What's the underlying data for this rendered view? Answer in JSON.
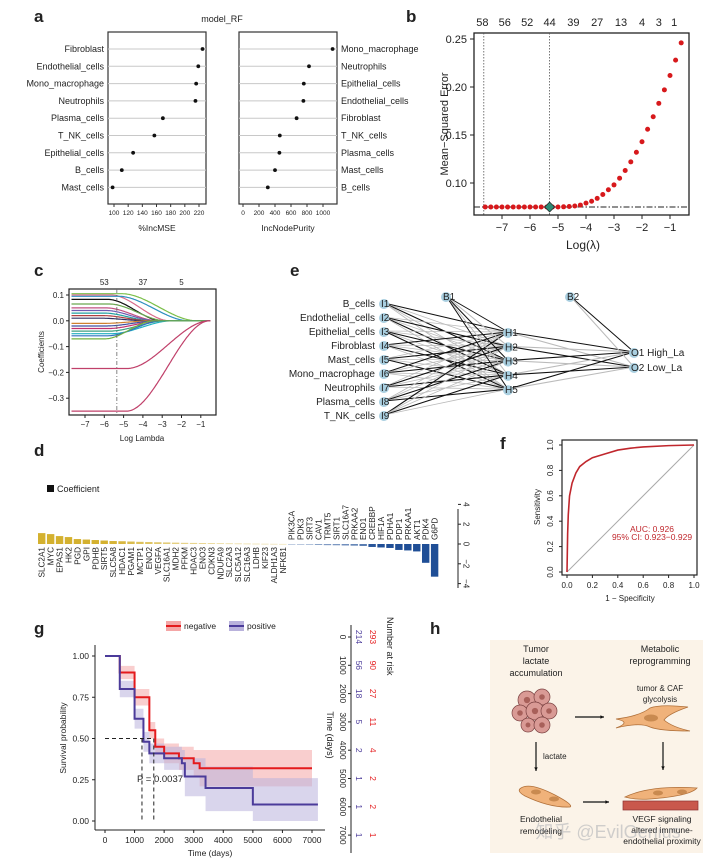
{
  "panel_labels": [
    "a",
    "b",
    "c",
    "d",
    "e",
    "f",
    "g",
    "h"
  ],
  "chart_data": [
    {
      "panel": "a",
      "type": "dot",
      "title": "model_RF",
      "subplots": [
        {
          "xlabel": "%IncMSE",
          "xticks": [
            100,
            120,
            140,
            160,
            180,
            200,
            220
          ],
          "xlim": [
            92,
            230
          ],
          "categories": [
            "Fibroblast",
            "Endothelial_cells",
            "Mono_macrophage",
            "Neutrophils",
            "Plasma_cells",
            "T_NK_cells",
            "Epithelial_cells",
            "B_cells",
            "Mast_cells"
          ],
          "values": [
            225,
            219,
            216,
            215,
            169,
            157,
            127,
            111,
            98
          ]
        },
        {
          "xlabel": "IncNodePurity",
          "xticks": [
            0,
            200,
            400,
            600,
            800,
            1000
          ],
          "xlim": [
            -50,
            1170
          ],
          "categories": [
            "Mono_macrophage",
            "Neutrophils",
            "Epithelial_cells",
            "Endothelial_cells",
            "Fibroblast",
            "T_NK_cells",
            "Plasma_cells",
            "Mast_cells",
            "B_cells"
          ],
          "values": [
            1120,
            825,
            760,
            755,
            670,
            460,
            455,
            400,
            310
          ]
        }
      ]
    },
    {
      "panel": "b",
      "type": "scatter",
      "xlabel": "Log(λ)",
      "ylabel": "Mean−Squared Error",
      "xticks": [
        -7,
        -6,
        -5,
        -4,
        -3,
        -2,
        -1
      ],
      "yticks": [
        0.1,
        0.15,
        0.2,
        0.25
      ],
      "ytick_labels": [
        "0.10",
        "0.15",
        "0.20",
        "0.25"
      ],
      "top_axis": {
        "labels": [
          "58",
          "56",
          "52",
          "44",
          "39",
          "27",
          "13",
          "4",
          "3",
          "1"
        ],
        "at": [
          -7.7,
          -6.9,
          -6.1,
          -5.3,
          -4.45,
          -3.6,
          -2.75,
          -2.0,
          -1.4,
          -0.85
        ]
      },
      "vlines": [
        -7.65,
        -5.3
      ],
      "hline": 0.075,
      "min_point": {
        "x": -5.3,
        "y": 0.075
      },
      "x": [
        -7.6,
        -7.4,
        -7.2,
        -7.0,
        -6.8,
        -6.6,
        -6.4,
        -6.2,
        -6.0,
        -5.8,
        -5.6,
        -5.4,
        -5.2,
        -5.0,
        -4.8,
        -4.6,
        -4.4,
        -4.2,
        -4.0,
        -3.8,
        -3.6,
        -3.4,
        -3.2,
        -3.0,
        -2.8,
        -2.6,
        -2.4,
        -2.2,
        -2.0,
        -1.8,
        -1.6,
        -1.4,
        -1.2,
        -1.0,
        -0.8,
        -0.6
      ],
      "y": [
        0.075,
        0.075,
        0.075,
        0.075,
        0.075,
        0.075,
        0.075,
        0.075,
        0.075,
        0.075,
        0.075,
        0.075,
        0.075,
        0.075,
        0.0752,
        0.0755,
        0.076,
        0.077,
        0.079,
        0.081,
        0.084,
        0.088,
        0.093,
        0.098,
        0.105,
        0.113,
        0.122,
        0.132,
        0.143,
        0.156,
        0.169,
        0.183,
        0.197,
        0.212,
        0.228,
        0.246
      ],
      "colors": {
        "points": "#d7191c",
        "min": "#2e8b75"
      }
    },
    {
      "panel": "c",
      "type": "line",
      "xlabel": "Log Lambda",
      "ylabel": "Coefficients",
      "xticks": [
        -7,
        -6,
        -5,
        -4,
        -3,
        -2,
        -1
      ],
      "yticks": [
        0.1,
        0.0,
        -0.1,
        -0.2,
        -0.3
      ],
      "ytick_labels": [
        "0.1",
        "0.0",
        "−0.1",
        "−0.2",
        "−0.3"
      ],
      "top_axis": {
        "labels": [
          "53",
          "37",
          "5"
        ],
        "at": [
          -6.0,
          -4.0,
          -2.0
        ]
      },
      "vline": -5.35,
      "series": [
        {
          "start": 0.1,
          "zero": -2.6,
          "color": "#d86a8a"
        },
        {
          "start": 0.105,
          "zero": -1.2,
          "color": "#7bbf4a"
        },
        {
          "start": 0.095,
          "zero": -1.6,
          "color": "#2e8fc0"
        },
        {
          "start": 0.083,
          "zero": -3.0,
          "color": "#111111"
        },
        {
          "start": 0.065,
          "zero": -2.8,
          "color": "#6aa84f"
        },
        {
          "start": 0.05,
          "zero": -3.2,
          "color": "#c05080"
        },
        {
          "start": 0.04,
          "zero": -3.3,
          "color": "#6f5bb0"
        },
        {
          "start": 0.03,
          "zero": -3.5,
          "color": "#20a0a0"
        },
        {
          "start": 0.02,
          "zero": -3.6,
          "color": "#b04040"
        },
        {
          "start": 0.01,
          "zero": -3.8,
          "color": "#303060"
        },
        {
          "start": -0.01,
          "zero": -3.5,
          "color": "#d08030"
        },
        {
          "start": -0.02,
          "zero": -3.2,
          "color": "#4050a0"
        },
        {
          "start": -0.03,
          "zero": -3.0,
          "color": "#c03070"
        },
        {
          "start": -0.04,
          "zero": -2.8,
          "color": "#40a080"
        },
        {
          "start": -0.05,
          "zero": -2.5,
          "color": "#20b0c0"
        },
        {
          "start": -0.058,
          "zero": -3.0,
          "color": "#3070c0"
        },
        {
          "start": -0.07,
          "zero": -3.4,
          "color": "#70b040"
        },
        {
          "start": -0.185,
          "zero": -0.55,
          "color": "#c0406a"
        },
        {
          "start": -0.35,
          "zero": -0.55,
          "color": "#c0406a"
        }
      ]
    },
    {
      "panel": "d",
      "type": "bar",
      "legend": "Coefficient",
      "yticks": [
        4,
        2,
        0,
        -2,
        -4
      ],
      "ytick_labels": [
        "4",
        "2",
        "0",
        "−2",
        "−4"
      ],
      "categories": [
        "SLC2A1",
        "MYC",
        "EPAS1",
        "HK2",
        "PGD",
        "GPI",
        "PDHB",
        "SIRT5",
        "SLC5A8",
        "HDAC1",
        "PGAM1",
        "MCTP1",
        "ENO2",
        "VEGFA",
        "SLC16A1",
        "MDH2",
        "PFKM",
        "HDAC3",
        "ENO3",
        "CDKN3",
        "NDUFA9",
        "SLC2A3",
        "SLC5A12",
        "SLC16A3",
        "LDHB",
        "KIF23",
        "ALDH1A3",
        "NFKB1",
        "PIK3CA",
        "PDK3",
        "SIRT3",
        "CAV1",
        "TRMT5",
        "SIRT1",
        "SLC16A7",
        "PRKAA2",
        "ENO1",
        "CREBBP",
        "HIF1A",
        "PDHA1",
        "PDP1",
        "PRKAA1",
        "AKT1",
        "PDK4",
        "G6PD"
      ],
      "values": [
        1.1,
        1.0,
        0.8,
        0.7,
        0.5,
        0.45,
        0.4,
        0.35,
        0.3,
        0.28,
        0.25,
        0.22,
        0.2,
        0.18,
        0.16,
        0.14,
        0.12,
        0.11,
        0.1,
        0.09,
        0.08,
        0.07,
        0.06,
        0.05,
        0.04,
        0.03,
        0.02,
        0.01,
        -0.02,
        -0.04,
        -0.06,
        -0.1,
        -0.12,
        -0.13,
        -0.15,
        -0.17,
        -0.2,
        -0.3,
        -0.35,
        -0.4,
        -0.6,
        -0.65,
        -0.75,
        -1.9,
        -3.3
      ],
      "colors": {
        "positive": "#d4b12f",
        "negative": "#1f4e96"
      }
    },
    {
      "panel": "e",
      "type": "network",
      "input_labels": [
        "B_cells",
        "Endothelial_cells",
        "Epithelial_cells",
        "Fibroblast",
        "Mast_cells",
        "Mono_macrophage",
        "Neutrophils",
        "Plasma_cells",
        "T_NK_cells"
      ],
      "input_nodes": [
        "I1",
        "I2",
        "I3",
        "I4",
        "I5",
        "I6",
        "I7",
        "I8",
        "I9"
      ],
      "hidden_nodes": [
        "H1",
        "H2",
        "H3",
        "H4",
        "H5"
      ],
      "bias_nodes": [
        "B1",
        "B2"
      ],
      "output_nodes": [
        "O1 High_La",
        "O2 Low_La"
      ],
      "colors": {
        "node": "#a9cfe0",
        "strong": "#111111",
        "weak": "#bbbbbb"
      }
    },
    {
      "panel": "f",
      "type": "line",
      "xlabel": "1 − Specificity",
      "ylabel": "Sensitivity",
      "xticks": [
        "0.0",
        "0.2",
        "0.4",
        "0.6",
        "0.8",
        "1.0"
      ],
      "yticks": [
        "0.0",
        "0.2",
        "0.4",
        "0.6",
        "0.8",
        "1.0"
      ],
      "fpr": [
        0,
        0.005,
        0.01,
        0.02,
        0.04,
        0.07,
        0.1,
        0.15,
        0.2,
        0.3,
        0.4,
        0.5,
        0.6,
        0.8,
        1
      ],
      "tpr": [
        0,
        0.3,
        0.45,
        0.6,
        0.7,
        0.78,
        0.83,
        0.87,
        0.9,
        0.93,
        0.96,
        0.975,
        0.985,
        0.995,
        1
      ],
      "auc_text": "AUC: 0.926",
      "ci_text": "95% CI: 0.923−0.929",
      "colors": {
        "roc": "#c0272d",
        "diagonal": "#aaaaaa"
      }
    },
    {
      "panel": "g",
      "type": "survival",
      "xlabel": "Time (days)",
      "ylabel": "Survival probability",
      "xticks": [
        0,
        1000,
        2000,
        3000,
        4000,
        5000,
        6000,
        7000
      ],
      "yticks": [
        "0.00",
        "0.25",
        "0.50",
        "0.75",
        "1.00"
      ],
      "p_value": "P = 0.0037",
      "medians": [
        1250,
        1650
      ],
      "series": [
        {
          "name": "negative",
          "color": "#e41a1c",
          "band": "#f4a6a6",
          "t": [
            0,
            500,
            1000,
            1500,
            1700,
            2000,
            2500,
            3000,
            3200,
            7000
          ],
          "s": [
            1,
            0.9,
            0.75,
            0.55,
            0.45,
            0.41,
            0.38,
            0.35,
            0.32,
            0.32
          ],
          "lower": [
            1,
            0.86,
            0.7,
            0.5,
            0.4,
            0.35,
            0.31,
            0.27,
            0.21,
            0.21
          ],
          "upper": [
            1,
            0.94,
            0.8,
            0.6,
            0.5,
            0.47,
            0.45,
            0.43,
            0.43,
            0.43
          ]
        },
        {
          "name": "positive",
          "color": "#4b3b9a",
          "band": "#b9b2dc",
          "t": [
            0,
            500,
            1000,
            1300,
            1500,
            2000,
            2600,
            2700,
            3300,
            3400,
            4950,
            5000,
            7200
          ],
          "s": [
            1,
            0.8,
            0.62,
            0.48,
            0.41,
            0.38,
            0.35,
            0.27,
            0.27,
            0.2,
            0.2,
            0.1,
            0.1
          ],
          "lower": [
            1,
            0.75,
            0.56,
            0.42,
            0.35,
            0.31,
            0.27,
            0.15,
            0.15,
            0.06,
            0.06,
            0,
            0
          ],
          "upper": [
            1,
            0.85,
            0.68,
            0.54,
            0.47,
            0.45,
            0.43,
            0.38,
            0.38,
            0.33,
            0.33,
            0.26,
            0.26
          ]
        }
      ],
      "risk_table": {
        "title": "Number at risk",
        "time_label": "Time (days)",
        "times": [
          "0",
          "1000",
          "2000",
          "3000",
          "4000",
          "5000",
          "6000",
          "7000"
        ],
        "negative": [
          "293",
          "90",
          "27",
          "11",
          "4",
          "2",
          "2",
          "1"
        ],
        "positive": [
          "214",
          "56",
          "18",
          "5",
          "2",
          "1",
          "1",
          "1"
        ]
      }
    }
  ],
  "panel_h": {
    "col1_title": [
      "Tumor",
      "lactate",
      "accumulation"
    ],
    "col2_title": [
      "Metabolic",
      "reprogramming"
    ],
    "glycolysis": [
      "tumor & CAF",
      "glycolysis"
    ],
    "lactate_arrow": "lactate",
    "endothelial": [
      "Endothelial",
      "remodeling"
    ],
    "vegf": [
      "VEGF signaling",
      "altered immune-",
      "endothelial proximity"
    ],
    "background": "#fbf3e8",
    "watermark": "知乎 @EvilGenius"
  }
}
